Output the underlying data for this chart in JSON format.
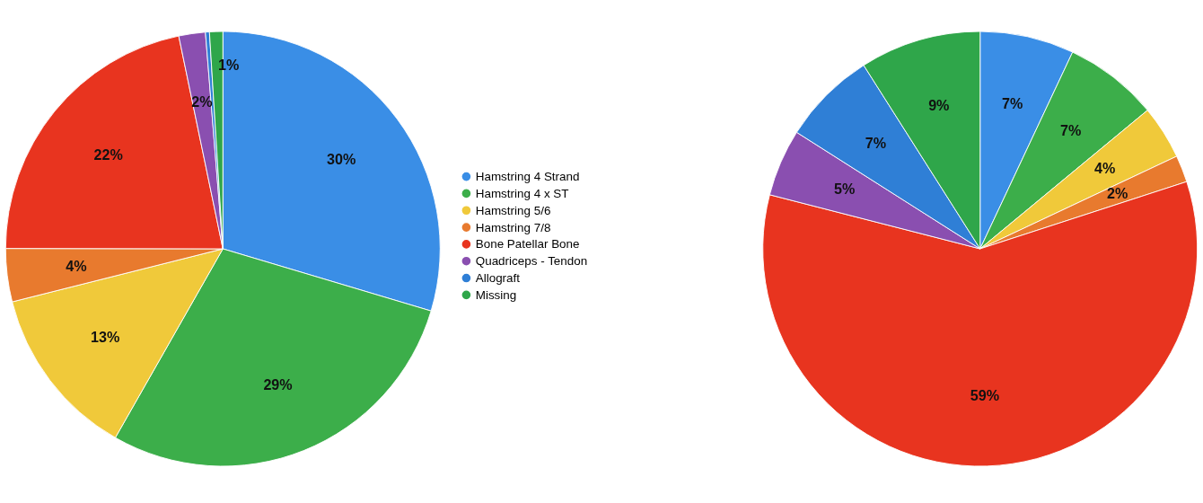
{
  "chart_data": [
    {
      "type": "pie",
      "categories": [
        "Hamstring 4 Strand",
        "Hamstring 4 x ST",
        "Hamstring 5/6",
        "Hamstring 7/8",
        "Bone Patellar Bone",
        "Quadriceps - Tendon",
        "Allograft",
        "Missing"
      ],
      "values": [
        30,
        29,
        13,
        4,
        22,
        2,
        0.3,
        1
      ],
      "value_labels": [
        "30%",
        "29%",
        "13%",
        "4%",
        "22%",
        "2%",
        null,
        "1%"
      ],
      "colors": [
        "#3a8ee6",
        "#3cae4a",
        "#f0c93a",
        "#e87a2e",
        "#e8341f",
        "#8a4fb0",
        "#2f7fd6",
        "#2fa64a"
      ],
      "legend": "right"
    },
    {
      "type": "pie",
      "categories": [
        null,
        null,
        null,
        null,
        null,
        null,
        null,
        null
      ],
      "values": [
        7,
        7,
        4,
        2,
        59,
        5,
        7,
        9
      ],
      "value_labels": [
        "7%",
        "7%",
        "4%",
        "2%",
        "59%",
        "5%",
        "7%",
        "9%"
      ],
      "colors": [
        "#3a8ee6",
        "#3cae4a",
        "#f0c93a",
        "#e87a2e",
        "#e8341f",
        "#8a4fb0",
        "#2f7fd6",
        "#2fa64a"
      ]
    }
  ]
}
